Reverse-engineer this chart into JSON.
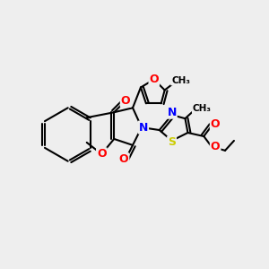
{
  "bg_color": "#eeeeee",
  "bond_color": "#000000",
  "bond_width": 1.5,
  "atom_colors": {
    "O": "#ff0000",
    "N": "#0000ff",
    "S": "#cccc00",
    "C": "#000000"
  }
}
